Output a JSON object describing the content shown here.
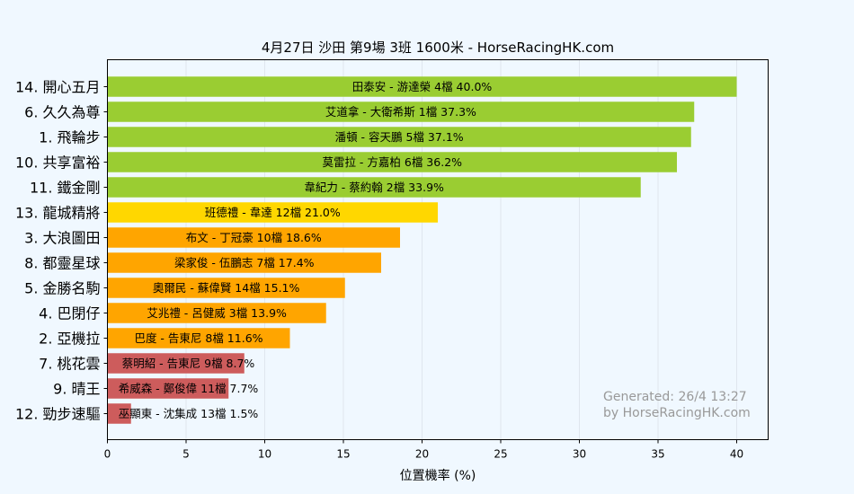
{
  "chart_data": {
    "type": "bar",
    "orientation": "horizontal",
    "title": "4月27日  沙田  第9場  3班  1600米 - HorseRacingHK.com",
    "xlabel": "位置機率 (%)",
    "ylabel": "",
    "xlim": [
      0,
      42
    ],
    "xticks": [
      "0",
      "5",
      "10",
      "15",
      "20",
      "25",
      "30",
      "35",
      "40"
    ],
    "grid": "vertical",
    "watermark": [
      "Generated: 26/4 13:27",
      "by HorseRacingHK.com"
    ],
    "categories": [
      "14. 開心五月",
      "6. 久久為尊",
      "1. 飛輪步",
      "10. 共享富裕",
      "11. 鐵金剛",
      "13. 龍城精將",
      "3. 大浪圖田",
      "8. 都靈星球",
      "5. 金勝名駒",
      "4. 巴閉仔",
      "2. 亞機拉",
      "7. 桃花雲",
      "9. 晴王",
      "12. 勁步速驅"
    ],
    "values": [
      40.0,
      37.3,
      37.1,
      36.2,
      33.9,
      21.0,
      18.6,
      17.4,
      15.1,
      13.9,
      11.6,
      8.7,
      7.7,
      1.5
    ],
    "bar_labels": [
      "田泰安 - 游達榮 4檔  40.0%",
      "艾道拿 - 大衛希斯 1檔  37.3%",
      "潘頓 - 容天鵬 5檔  37.1%",
      "莫雷拉 - 方嘉柏 6檔  36.2%",
      "韋紀力 - 蔡約翰 2檔  33.9%",
      "班德禮 - 韋達 12檔  21.0%",
      "布文 - 丁冠豪 10檔  18.6%",
      "梁家俊 - 伍鵬志 7檔  17.4%",
      "奧爾民 - 蘇偉賢 14檔  15.1%",
      "艾兆禮 - 呂健威 3檔  13.9%",
      "巴度 - 告東尼 8檔  11.6%",
      "蔡明紹 - 告東尼 9檔  8.7%",
      "希威森 - 鄭俊偉 11檔  7.7%",
      "巫顯東 - 沈集成 13檔  1.5%"
    ],
    "bar_colors": [
      "#9acd32",
      "#9acd32",
      "#9acd32",
      "#9acd32",
      "#9acd32",
      "#ffd700",
      "#ffa500",
      "#ffa500",
      "#ffa500",
      "#ffa500",
      "#ffa500",
      "#cd5c5c",
      "#cd5c5c",
      "#cd5c5c"
    ]
  }
}
